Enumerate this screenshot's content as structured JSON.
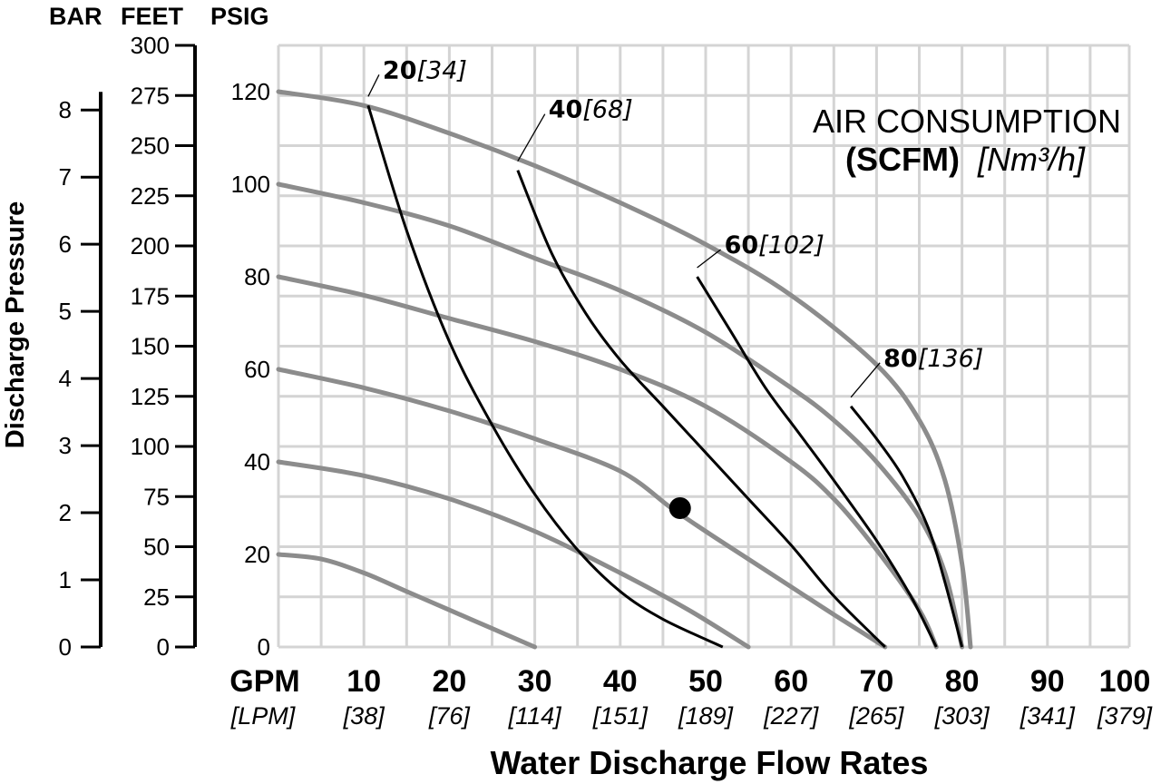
{
  "chart_data": {
    "type": "line",
    "legend_title_line1": "AIR CONSUMPTION",
    "legend_title_unit": "(SCFM)",
    "legend_title_metric": "[Nm³/h]",
    "xlabel": "Water Discharge Flow Rates",
    "ylabel": "Discharge Pressure",
    "axis_headers": {
      "bar": "BAR",
      "feet": "FEET",
      "psig": "PSIG"
    },
    "x_unit_label": "GPM",
    "x_unit_label_metric": "[LPM]",
    "xlim": [
      0,
      100
    ],
    "ylim": [
      0,
      130
    ],
    "x_ticks": [
      {
        "gpm": "10",
        "lpm": "[38]"
      },
      {
        "gpm": "20",
        "lpm": "[76]"
      },
      {
        "gpm": "30",
        "lpm": "[114]"
      },
      {
        "gpm": "40",
        "lpm": "[151]"
      },
      {
        "gpm": "50",
        "lpm": "[189]"
      },
      {
        "gpm": "60",
        "lpm": "[227]"
      },
      {
        "gpm": "70",
        "lpm": "[265]"
      },
      {
        "gpm": "80",
        "lpm": "[303]"
      },
      {
        "gpm": "90",
        "lpm": "[341]"
      },
      {
        "gpm": "100",
        "lpm": "[379]"
      }
    ],
    "psig_ticks": [
      "0",
      "20",
      "40",
      "60",
      "80",
      "100",
      "120"
    ],
    "feet_ticks": [
      "0",
      "25",
      "50",
      "75",
      "100",
      "125",
      "150",
      "175",
      "200",
      "225",
      "250",
      "275",
      "300"
    ],
    "bar_ticks": [
      "0",
      "1",
      "2",
      "3",
      "4",
      "5",
      "6",
      "7",
      "8"
    ],
    "grid": true,
    "grid_color": "#d4d4d4",
    "curve_color": "#8c8c8c",
    "air_line_color": "#000000",
    "pressure_curves": [
      {
        "x": [
          0,
          10,
          20,
          30,
          40,
          50,
          60,
          70,
          75,
          78,
          80,
          81
        ],
        "y": [
          120,
          117,
          111,
          104,
          96,
          87,
          76,
          61,
          49,
          36,
          18,
          0
        ]
      },
      {
        "x": [
          0,
          10,
          20,
          30,
          40,
          50,
          60,
          65,
          70,
          75,
          78,
          80
        ],
        "y": [
          100,
          96,
          91,
          84,
          77,
          68,
          56,
          49,
          40,
          28,
          16,
          0
        ]
      },
      {
        "x": [
          0,
          10,
          20,
          30,
          40,
          50,
          60,
          65,
          70,
          75,
          77
        ],
        "y": [
          80,
          76,
          71,
          66,
          60,
          52,
          40,
          32,
          21,
          8,
          0
        ]
      },
      {
        "x": [
          0,
          10,
          20,
          30,
          40,
          46,
          50,
          55,
          60,
          65,
          71
        ],
        "y": [
          60,
          56,
          51,
          45,
          38,
          30,
          25,
          19,
          13,
          7,
          0
        ]
      },
      {
        "x": [
          0,
          10,
          20,
          30,
          40,
          48,
          55
        ],
        "y": [
          40,
          37,
          32,
          25,
          16,
          8,
          0
        ]
      },
      {
        "x": [
          0,
          5,
          10,
          15,
          20,
          25,
          30
        ],
        "y": [
          20,
          19,
          16,
          12,
          8,
          4,
          0
        ]
      }
    ],
    "air_lines": [
      {
        "label": "20",
        "label_metric": "[34]",
        "x": [
          10.5,
          15,
          20,
          25,
          30,
          35,
          40,
          45,
          52
        ],
        "y": [
          117,
          90,
          66,
          48,
          33,
          21,
          12,
          6,
          0
        ]
      },
      {
        "label": "40",
        "label_metric": "[68]",
        "x": [
          28,
          32,
          36,
          40,
          45,
          50,
          55,
          60,
          65,
          71
        ],
        "y": [
          103,
          85,
          72,
          62,
          52,
          42,
          32,
          22,
          11,
          0
        ]
      },
      {
        "label": "60",
        "label_metric": "[102]",
        "x": [
          49,
          53,
          57,
          61,
          65,
          70,
          74,
          77
        ],
        "y": [
          80,
          68,
          56,
          46,
          36,
          23,
          11,
          0
        ]
      },
      {
        "label": "80",
        "label_metric": "[136]",
        "x": [
          67,
          70,
          73,
          76,
          78,
          80
        ],
        "y": [
          52,
          45,
          37,
          26,
          14,
          0
        ]
      }
    ],
    "operating_point": {
      "x": 47,
      "y": 30
    }
  }
}
